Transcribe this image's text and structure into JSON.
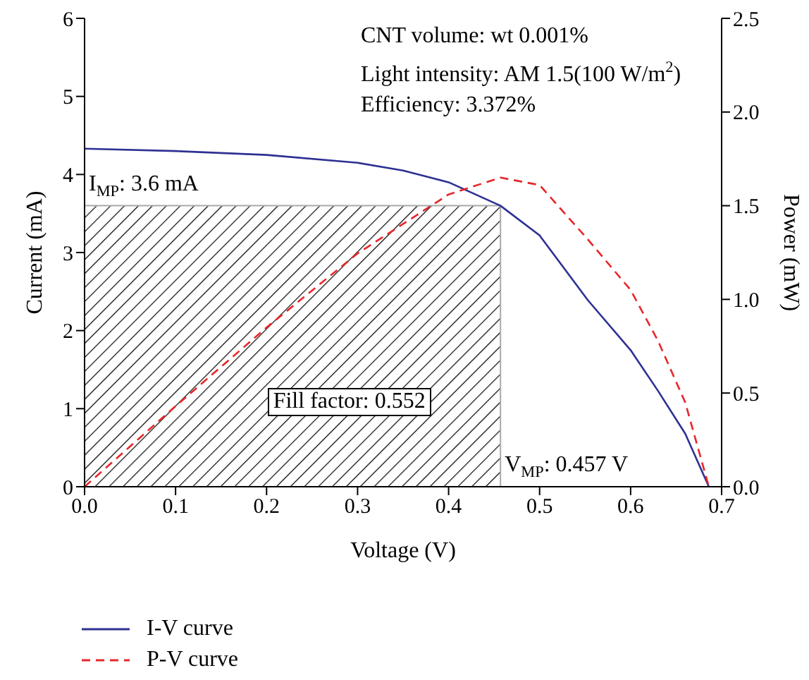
{
  "chart_data": {
    "type": "line",
    "xlabel": "Voltage (V)",
    "ylabel": "Current (mA)",
    "y2label": "Power (mW)",
    "xlim": [
      0,
      0.7
    ],
    "xticks": [
      {
        "value": 0,
        "label": "0.0"
      },
      {
        "value": 0.1,
        "label": "0.1"
      },
      {
        "value": 0.2,
        "label": "0.2"
      },
      {
        "value": 0.3,
        "label": "0.3"
      },
      {
        "value": 0.4,
        "label": "0.4"
      },
      {
        "value": 0.5,
        "label": "0.5"
      },
      {
        "value": 0.6,
        "label": "0.6"
      },
      {
        "value": 0.7,
        "label": "0.7"
      }
    ],
    "ylim": [
      0,
      6
    ],
    "yticks": [
      0,
      1,
      2,
      3,
      4,
      5,
      6
    ],
    "y2lim": [
      0,
      2.5
    ],
    "y2ticks": [
      {
        "value": 0,
        "label": "0.0"
      },
      {
        "value": 0.5,
        "label": "0.5"
      },
      {
        "value": 1,
        "label": "1.0"
      },
      {
        "value": 1.5,
        "label": "1.5"
      },
      {
        "value": 2,
        "label": "2.0"
      },
      {
        "value": 2.5,
        "label": "2.5"
      }
    ],
    "series": [
      {
        "name": "I-V curve",
        "color": "#2e3192",
        "line_style": "solid",
        "x": [
          0,
          0.1,
          0.2,
          0.3,
          0.35,
          0.4,
          0.457,
          0.5,
          0.553,
          0.6,
          0.63,
          0.66,
          0.686
        ],
        "values": [
          4.33,
          4.3,
          4.25,
          4.15,
          4.05,
          3.9,
          3.6,
          3.22,
          2.39,
          1.75,
          1.23,
          0.68,
          0
        ]
      },
      {
        "name": "P-V curve",
        "color": "#e8262a",
        "line_style": "dashed",
        "axis": "y2",
        "x": [
          0,
          0.1,
          0.2,
          0.3,
          0.4,
          0.457,
          0.5,
          0.553,
          0.6,
          0.63,
          0.66,
          0.686
        ],
        "values": [
          0,
          0.43,
          0.85,
          1.245,
          1.56,
          1.65,
          1.61,
          1.32,
          1.05,
          0.78,
          0.45,
          0
        ]
      }
    ],
    "bands": [
      {
        "axis": "x",
        "from": 0,
        "to": 0.457,
        "label": "Fill factor: 0.552"
      }
    ],
    "annotations": [
      {
        "text": "I$_{MP}$: 3.6 mA",
        "x": 0,
        "y": 3.6
      },
      {
        "text": "V$_{MP}$: 0.457 V",
        "x": 0.457,
        "y": 0
      },
      "CNT volume: wt 0.001%",
      "Light intensity: AM 1.5(100 W/m$^{2}$)",
      "Efficiency: 3.372%"
    ],
    "marker": "none",
    "grid": false,
    "legend": "bottom"
  }
}
